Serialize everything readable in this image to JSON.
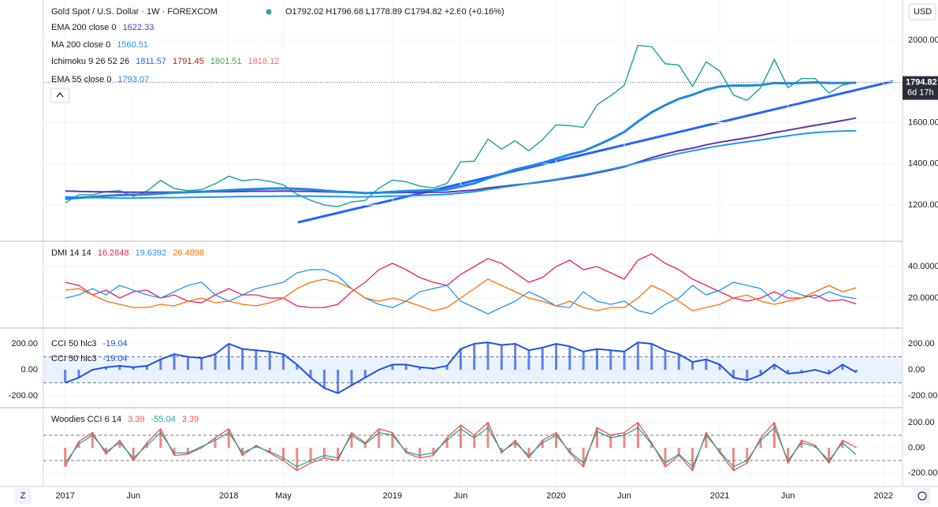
{
  "header": {
    "symbol": "Gold Spot / U.S. Dollar · 1W · FOREXCOM",
    "ohlc": "O1792.02 H1796.68 L1778.89 C1794.82 +2.80 (+0.16%)",
    "currency": "USD",
    "countdown": "6d 17h",
    "zoom": "Z"
  },
  "chart_data": [
    {
      "type": "line",
      "x": [
        0,
        1,
        2,
        3,
        4,
        5,
        6,
        7,
        8,
        9,
        10,
        11,
        12,
        13,
        14,
        15,
        16,
        17,
        18,
        19,
        20,
        21,
        22,
        23,
        24,
        25,
        26,
        27,
        28,
        29,
        30,
        31,
        32,
        33,
        34,
        35,
        36,
        37,
        38,
        39,
        40,
        41,
        42,
        43,
        44,
        45,
        46,
        47,
        48,
        49,
        50,
        51,
        52,
        53,
        54,
        55,
        56,
        57,
        58
      ],
      "xlim": [
        -1.6,
        61.4
      ],
      "xticks": [
        {
          "value": 0,
          "label": "2017"
        },
        {
          "value": 5,
          "label": "Jun"
        },
        {
          "value": 12,
          "label": "2018"
        },
        {
          "value": 16,
          "label": "May"
        },
        {
          "value": 24,
          "label": "2019"
        },
        {
          "value": 29,
          "label": "Jun"
        },
        {
          "value": 36,
          "label": "2020"
        },
        {
          "value": 41,
          "label": "Jun"
        },
        {
          "value": 48,
          "label": "2021"
        },
        {
          "value": 53,
          "label": "Jun"
        },
        {
          "value": 60,
          "label": "2022"
        }
      ],
      "ylim": [
        1028,
        2195
      ],
      "yticks": [
        {
          "value": 1200,
          "label": "1200.00"
        },
        {
          "value": 1400,
          "label": "1400.00"
        },
        {
          "value": 1600,
          "label": "1600.00"
        },
        {
          "value": 1800,
          "label": "1800.00"
        },
        {
          "value": 2000,
          "label": "2000.00"
        }
      ],
      "series": [
        {
          "color": "#26a69a",
          "width": 1.5,
          "values": [
            1210,
            1250,
            1250,
            1265,
            1270,
            1242,
            1268,
            1320,
            1280,
            1270,
            1275,
            1303,
            1340,
            1318,
            1325,
            1315,
            1298,
            1252,
            1223,
            1200,
            1192,
            1215,
            1222,
            1282,
            1321,
            1313,
            1292,
            1283,
            1305,
            1409,
            1413,
            1520,
            1472,
            1512,
            1463,
            1517,
            1589,
            1585,
            1577,
            1686,
            1730,
            1781,
            1975,
            1968,
            1886,
            1879,
            1776,
            1895,
            1850,
            1734,
            1708,
            1769,
            1906,
            1770,
            1814,
            1814,
            1743,
            1783,
            1794.82
          ]
        },
        {
          "name": "EMA 200 close 0",
          "color": "#5e35b1",
          "width": 2,
          "values": [
            1268,
            1266,
            1265,
            1264,
            1263,
            1262,
            1262,
            1262,
            1263,
            1263,
            1263,
            1264,
            1265,
            1266,
            1267,
            1267,
            1268,
            1267,
            1266,
            1264,
            1262,
            1261,
            1259,
            1259,
            1260,
            1261,
            1261,
            1262,
            1263,
            1268,
            1273,
            1283,
            1290,
            1298,
            1304,
            1312,
            1322,
            1332,
            1342,
            1356,
            1370,
            1385,
            1408,
            1430,
            1448,
            1464,
            1476,
            1492,
            1505,
            1516,
            1526,
            1538,
            1552,
            1563,
            1575,
            1587,
            1598,
            1610,
            1622.33
          ]
        },
        {
          "name": "MA 200 close 0",
          "color": "#2196f3",
          "width": 2,
          "values": [
            1240,
            1238,
            1236,
            1235,
            1234,
            1234,
            1235,
            1236,
            1236,
            1237,
            1238,
            1239,
            1240,
            1241,
            1242,
            1242,
            1243,
            1243,
            1243,
            1242,
            1241,
            1240,
            1240,
            1241,
            1243,
            1245,
            1247,
            1249,
            1252,
            1258,
            1265,
            1275,
            1285,
            1295,
            1305,
            1315,
            1325,
            1336,
            1347,
            1360,
            1374,
            1388,
            1405,
            1420,
            1435,
            1450,
            1463,
            1476,
            1488,
            1498,
            1507,
            1516,
            1527,
            1536,
            1545,
            1552,
            1556,
            1559,
            1560.51
          ]
        },
        {
          "name": "EMA 55 close 0",
          "color": "#1e88e5",
          "width": 3,
          "values": [
            1230,
            1235,
            1240,
            1245,
            1248,
            1250,
            1252,
            1256,
            1260,
            1262,
            1265,
            1268,
            1272,
            1275,
            1278,
            1280,
            1281,
            1279,
            1276,
            1270,
            1265,
            1262,
            1258,
            1260,
            1264,
            1268,
            1270,
            1272,
            1276,
            1290,
            1305,
            1330,
            1350,
            1372,
            1388,
            1405,
            1425,
            1445,
            1462,
            1490,
            1520,
            1555,
            1605,
            1650,
            1685,
            1715,
            1735,
            1760,
            1775,
            1780,
            1780,
            1782,
            1792,
            1790,
            1793,
            1795,
            1792,
            1792,
            1793.07
          ]
        }
      ],
      "ichimoku": {
        "name": "Ichimoku 9 26 52 26",
        "values": [
          1811.57,
          1791.45,
          1801.51,
          1818.12
        ],
        "colors": [
          "#2962ff",
          "#b71c1c",
          "#43a047",
          "#e57373"
        ]
      }
    },
    {
      "type": "line",
      "label": "DMI 14 14",
      "ylim": [
        1.5,
        55.5
      ],
      "yticks": [
        {
          "value": 20,
          "label": "20.0000"
        },
        {
          "value": 40,
          "label": "40.0000"
        }
      ],
      "series": [
        {
          "color": "#e91e63",
          "width": 1.3,
          "values": [
            30,
            28,
            22,
            25,
            20,
            24,
            25,
            20,
            22,
            18,
            17,
            22,
            26,
            22,
            22,
            20,
            20,
            15,
            14,
            14,
            16,
            24,
            30,
            38,
            42,
            38,
            33,
            30,
            28,
            35,
            40,
            45,
            42,
            36,
            30,
            33,
            40,
            44,
            38,
            40,
            36,
            32,
            44,
            48,
            42,
            38,
            32,
            28,
            24,
            20,
            18,
            20,
            24,
            20,
            20,
            22,
            18,
            19,
            16.2848
          ]
        },
        {
          "color": "#2196f3",
          "width": 1.3,
          "values": [
            20,
            22,
            26,
            22,
            28,
            25,
            22,
            20,
            24,
            28,
            30,
            22,
            18,
            22,
            26,
            28,
            30,
            36,
            38,
            38,
            34,
            26,
            20,
            16,
            14,
            18,
            24,
            26,
            28,
            18,
            14,
            10,
            14,
            18,
            24,
            20,
            15,
            14,
            24,
            18,
            16,
            18,
            12,
            10,
            16,
            20,
            28,
            22,
            25,
            30,
            28,
            26,
            18,
            25,
            22,
            20,
            24,
            21,
            19.6392
          ]
        },
        {
          "color": "#ff6d00",
          "width": 1.3,
          "values": [
            25,
            26,
            22,
            18,
            16,
            14,
            14,
            16,
            15,
            18,
            20,
            17,
            18,
            16,
            15,
            17,
            20,
            26,
            30,
            32,
            30,
            26,
            20,
            18,
            20,
            18,
            15,
            12,
            14,
            20,
            26,
            32,
            28,
            24,
            20,
            18,
            15,
            18,
            14,
            12,
            14,
            14,
            20,
            28,
            24,
            18,
            12,
            14,
            16,
            20,
            22,
            18,
            16,
            18,
            20,
            24,
            28,
            24,
            26.4898
          ]
        }
      ]
    },
    {
      "type": "cci",
      "label": "CCI 50 hlc3",
      "left_axis": true,
      "band": [
        -100,
        100
      ],
      "band_fill": "#dbeafe",
      "ylim": [
        -285,
        315
      ],
      "yticks": [
        {
          "value": -200,
          "label": "-200.00"
        },
        {
          "value": 0,
          "label": "0.00"
        },
        {
          "value": 200,
          "label": "200.00"
        }
      ],
      "series": [
        {
          "color": "#1e53e5",
          "width": 2,
          "histogram": true,
          "values": [
            -100,
            -60,
            0,
            20,
            30,
            20,
            30,
            80,
            120,
            100,
            90,
            120,
            200,
            160,
            150,
            140,
            120,
            40,
            -60,
            -140,
            -180,
            -120,
            -60,
            0,
            40,
            40,
            20,
            10,
            30,
            160,
            200,
            210,
            190,
            200,
            150,
            170,
            200,
            180,
            140,
            160,
            150,
            140,
            210,
            200,
            150,
            120,
            60,
            80,
            40,
            -60,
            -80,
            -40,
            40,
            -30,
            -20,
            0,
            -30,
            40,
            -19.04
          ]
        }
      ]
    },
    {
      "type": "cci",
      "label": "Woodies CCI 6 14",
      "band": [
        -100,
        100
      ],
      "ylim": [
        -300,
        312
      ],
      "yticks": [
        {
          "value": -200,
          "label": "-200.00"
        },
        {
          "value": 0,
          "label": "0.00"
        },
        {
          "value": 200,
          "label": "200.00"
        }
      ],
      "series": [
        {
          "color": "#ef5350",
          "width": 1.3,
          "histogram": true,
          "values": [
            -150,
            50,
            120,
            -50,
            60,
            -100,
            40,
            150,
            -60,
            -50,
            0,
            80,
            150,
            -60,
            20,
            -40,
            -100,
            -180,
            -120,
            -80,
            -100,
            120,
            40,
            150,
            120,
            -40,
            -80,
            -60,
            80,
            180,
            100,
            200,
            -40,
            60,
            -80,
            60,
            120,
            -40,
            -150,
            160,
            100,
            120,
            200,
            40,
            -150,
            -60,
            -180,
            120,
            -40,
            -180,
            -120,
            80,
            200,
            -120,
            60,
            20,
            -120,
            60,
            3.39
          ]
        },
        {
          "color": "#26a69a",
          "width": 1.3,
          "values": [
            -120,
            30,
            100,
            -30,
            40,
            -80,
            20,
            120,
            -40,
            -40,
            10,
            60,
            120,
            -40,
            10,
            -30,
            -80,
            -150,
            -100,
            -60,
            -80,
            100,
            30,
            120,
            100,
            -30,
            -60,
            -40,
            60,
            150,
            80,
            160,
            -30,
            40,
            -60,
            40,
            100,
            -30,
            -120,
            130,
            80,
            100,
            160,
            30,
            -120,
            -50,
            -150,
            100,
            -30,
            -150,
            -100,
            60,
            160,
            -100,
            40,
            10,
            -100,
            40,
            -55.04
          ]
        }
      ],
      "legend_order": [
        0,
        1,
        0
      ]
    }
  ]
}
